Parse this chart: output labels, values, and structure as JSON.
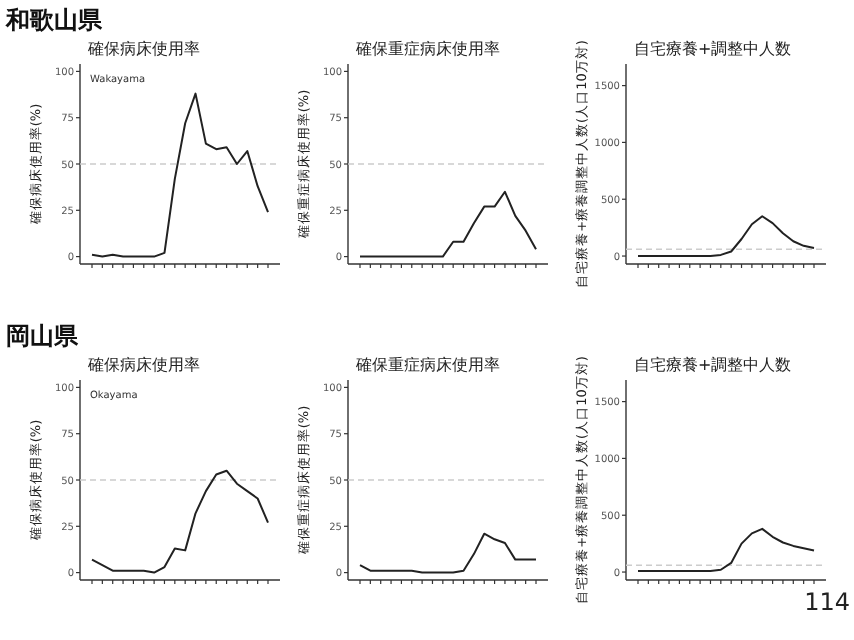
{
  "chart_data": [
    {
      "type": "line",
      "title": "確保病床使用率",
      "ylabel": "確保病床使用率(%)",
      "annotations": [
        "和歌山県",
        "Wakayama"
      ],
      "categories": [
        null,
        null,
        null,
        null,
        null,
        null,
        null,
        null,
        null,
        null,
        null,
        null,
        null,
        null,
        null,
        null,
        null,
        null
      ],
      "ylim": [
        -4,
        104
      ],
      "yticks": [
        0,
        25,
        50,
        75,
        100
      ],
      "ref_lines": [
        {
          "axis": "y",
          "value": 50,
          "color": "#cccccc",
          "line_style": "dashed"
        }
      ],
      "series": [
        {
          "color": "#222222",
          "values": [
            1,
            0,
            1,
            0,
            0,
            0,
            0,
            2,
            42,
            72,
            88,
            61,
            58,
            59,
            50,
            57,
            38,
            24
          ]
        }
      ]
    },
    {
      "type": "line",
      "title": "確保重症病床使用率",
      "ylabel": "確保重症病床使用率(%)",
      "categories": [
        null,
        null,
        null,
        null,
        null,
        null,
        null,
        null,
        null,
        null,
        null,
        null,
        null,
        null,
        null,
        null,
        null,
        null
      ],
      "ylim": [
        -4,
        104
      ],
      "yticks": [
        0,
        25,
        50,
        75,
        100
      ],
      "ref_lines": [
        {
          "axis": "y",
          "value": 50,
          "color": "#cccccc",
          "line_style": "dashed"
        }
      ],
      "series": [
        {
          "color": "#222222",
          "values": [
            0,
            0,
            0,
            0,
            0,
            0,
            0,
            0,
            0,
            8,
            8,
            18,
            27,
            27,
            35,
            22,
            14,
            4
          ]
        }
      ]
    },
    {
      "type": "line",
      "title": "自宅療養+調整中人数",
      "ylabel": "自宅療養+療養調整中人数(人口10万対)",
      "categories": [
        null,
        null,
        null,
        null,
        null,
        null,
        null,
        null,
        null,
        null,
        null,
        null,
        null,
        null,
        null,
        null,
        null,
        null
      ],
      "ylim": [
        -70,
        1690
      ],
      "yticks": [
        0,
        500,
        1000,
        1500
      ],
      "ref_lines": [
        {
          "axis": "y",
          "value": 60,
          "color": "#cccccc",
          "line_style": "dashed"
        }
      ],
      "series": [
        {
          "color": "#222222",
          "values": [
            0,
            0,
            0,
            0,
            0,
            0,
            0,
            0,
            10,
            40,
            150,
            280,
            350,
            290,
            200,
            130,
            90,
            70
          ]
        }
      ]
    },
    {
      "type": "line",
      "title": "確保病床使用率",
      "ylabel": "確保病床使用率(%)",
      "annotations": [
        "岡山県",
        "Okayama"
      ],
      "categories": [
        null,
        null,
        null,
        null,
        null,
        null,
        null,
        null,
        null,
        null,
        null,
        null,
        null,
        null,
        null,
        null,
        null,
        null
      ],
      "ylim": [
        -4,
        104
      ],
      "yticks": [
        0,
        25,
        50,
        75,
        100
      ],
      "ref_lines": [
        {
          "axis": "y",
          "value": 50,
          "color": "#cccccc",
          "line_style": "dashed"
        }
      ],
      "series": [
        {
          "color": "#222222",
          "values": [
            7,
            4,
            1,
            1,
            1,
            1,
            0,
            3,
            13,
            12,
            32,
            44,
            53,
            55,
            48,
            44,
            40,
            27
          ]
        }
      ]
    },
    {
      "type": "line",
      "title": "確保重症病床使用率",
      "ylabel": "確保重症病床使用率(%)",
      "categories": [
        null,
        null,
        null,
        null,
        null,
        null,
        null,
        null,
        null,
        null,
        null,
        null,
        null,
        null,
        null,
        null,
        null,
        null
      ],
      "ylim": [
        -4,
        104
      ],
      "yticks": [
        0,
        25,
        50,
        75,
        100
      ],
      "ref_lines": [
        {
          "axis": "y",
          "value": 50,
          "color": "#cccccc",
          "line_style": "dashed"
        }
      ],
      "series": [
        {
          "color": "#222222",
          "values": [
            4,
            1,
            1,
            1,
            1,
            1,
            0,
            0,
            0,
            0,
            1,
            10,
            21,
            18,
            16,
            7,
            7,
            7
          ]
        }
      ]
    },
    {
      "type": "line",
      "title": "自宅療養+調整中人数",
      "ylabel": "自宅療養+療養調整中人数(人口10万対)",
      "annotations": [
        "114"
      ],
      "categories": [
        null,
        null,
        null,
        null,
        null,
        null,
        null,
        null,
        null,
        null,
        null,
        null,
        null,
        null,
        null,
        null,
        null,
        null
      ],
      "ylim": [
        -70,
        1690
      ],
      "yticks": [
        0,
        500,
        1000,
        1500
      ],
      "ref_lines": [
        {
          "axis": "y",
          "value": 60,
          "color": "#cccccc",
          "line_style": "dashed"
        }
      ],
      "series": [
        {
          "color": "#222222",
          "values": [
            10,
            10,
            10,
            10,
            10,
            10,
            10,
            10,
            20,
            80,
            250,
            340,
            380,
            310,
            260,
            230,
            210,
            190
          ]
        }
      ]
    }
  ]
}
